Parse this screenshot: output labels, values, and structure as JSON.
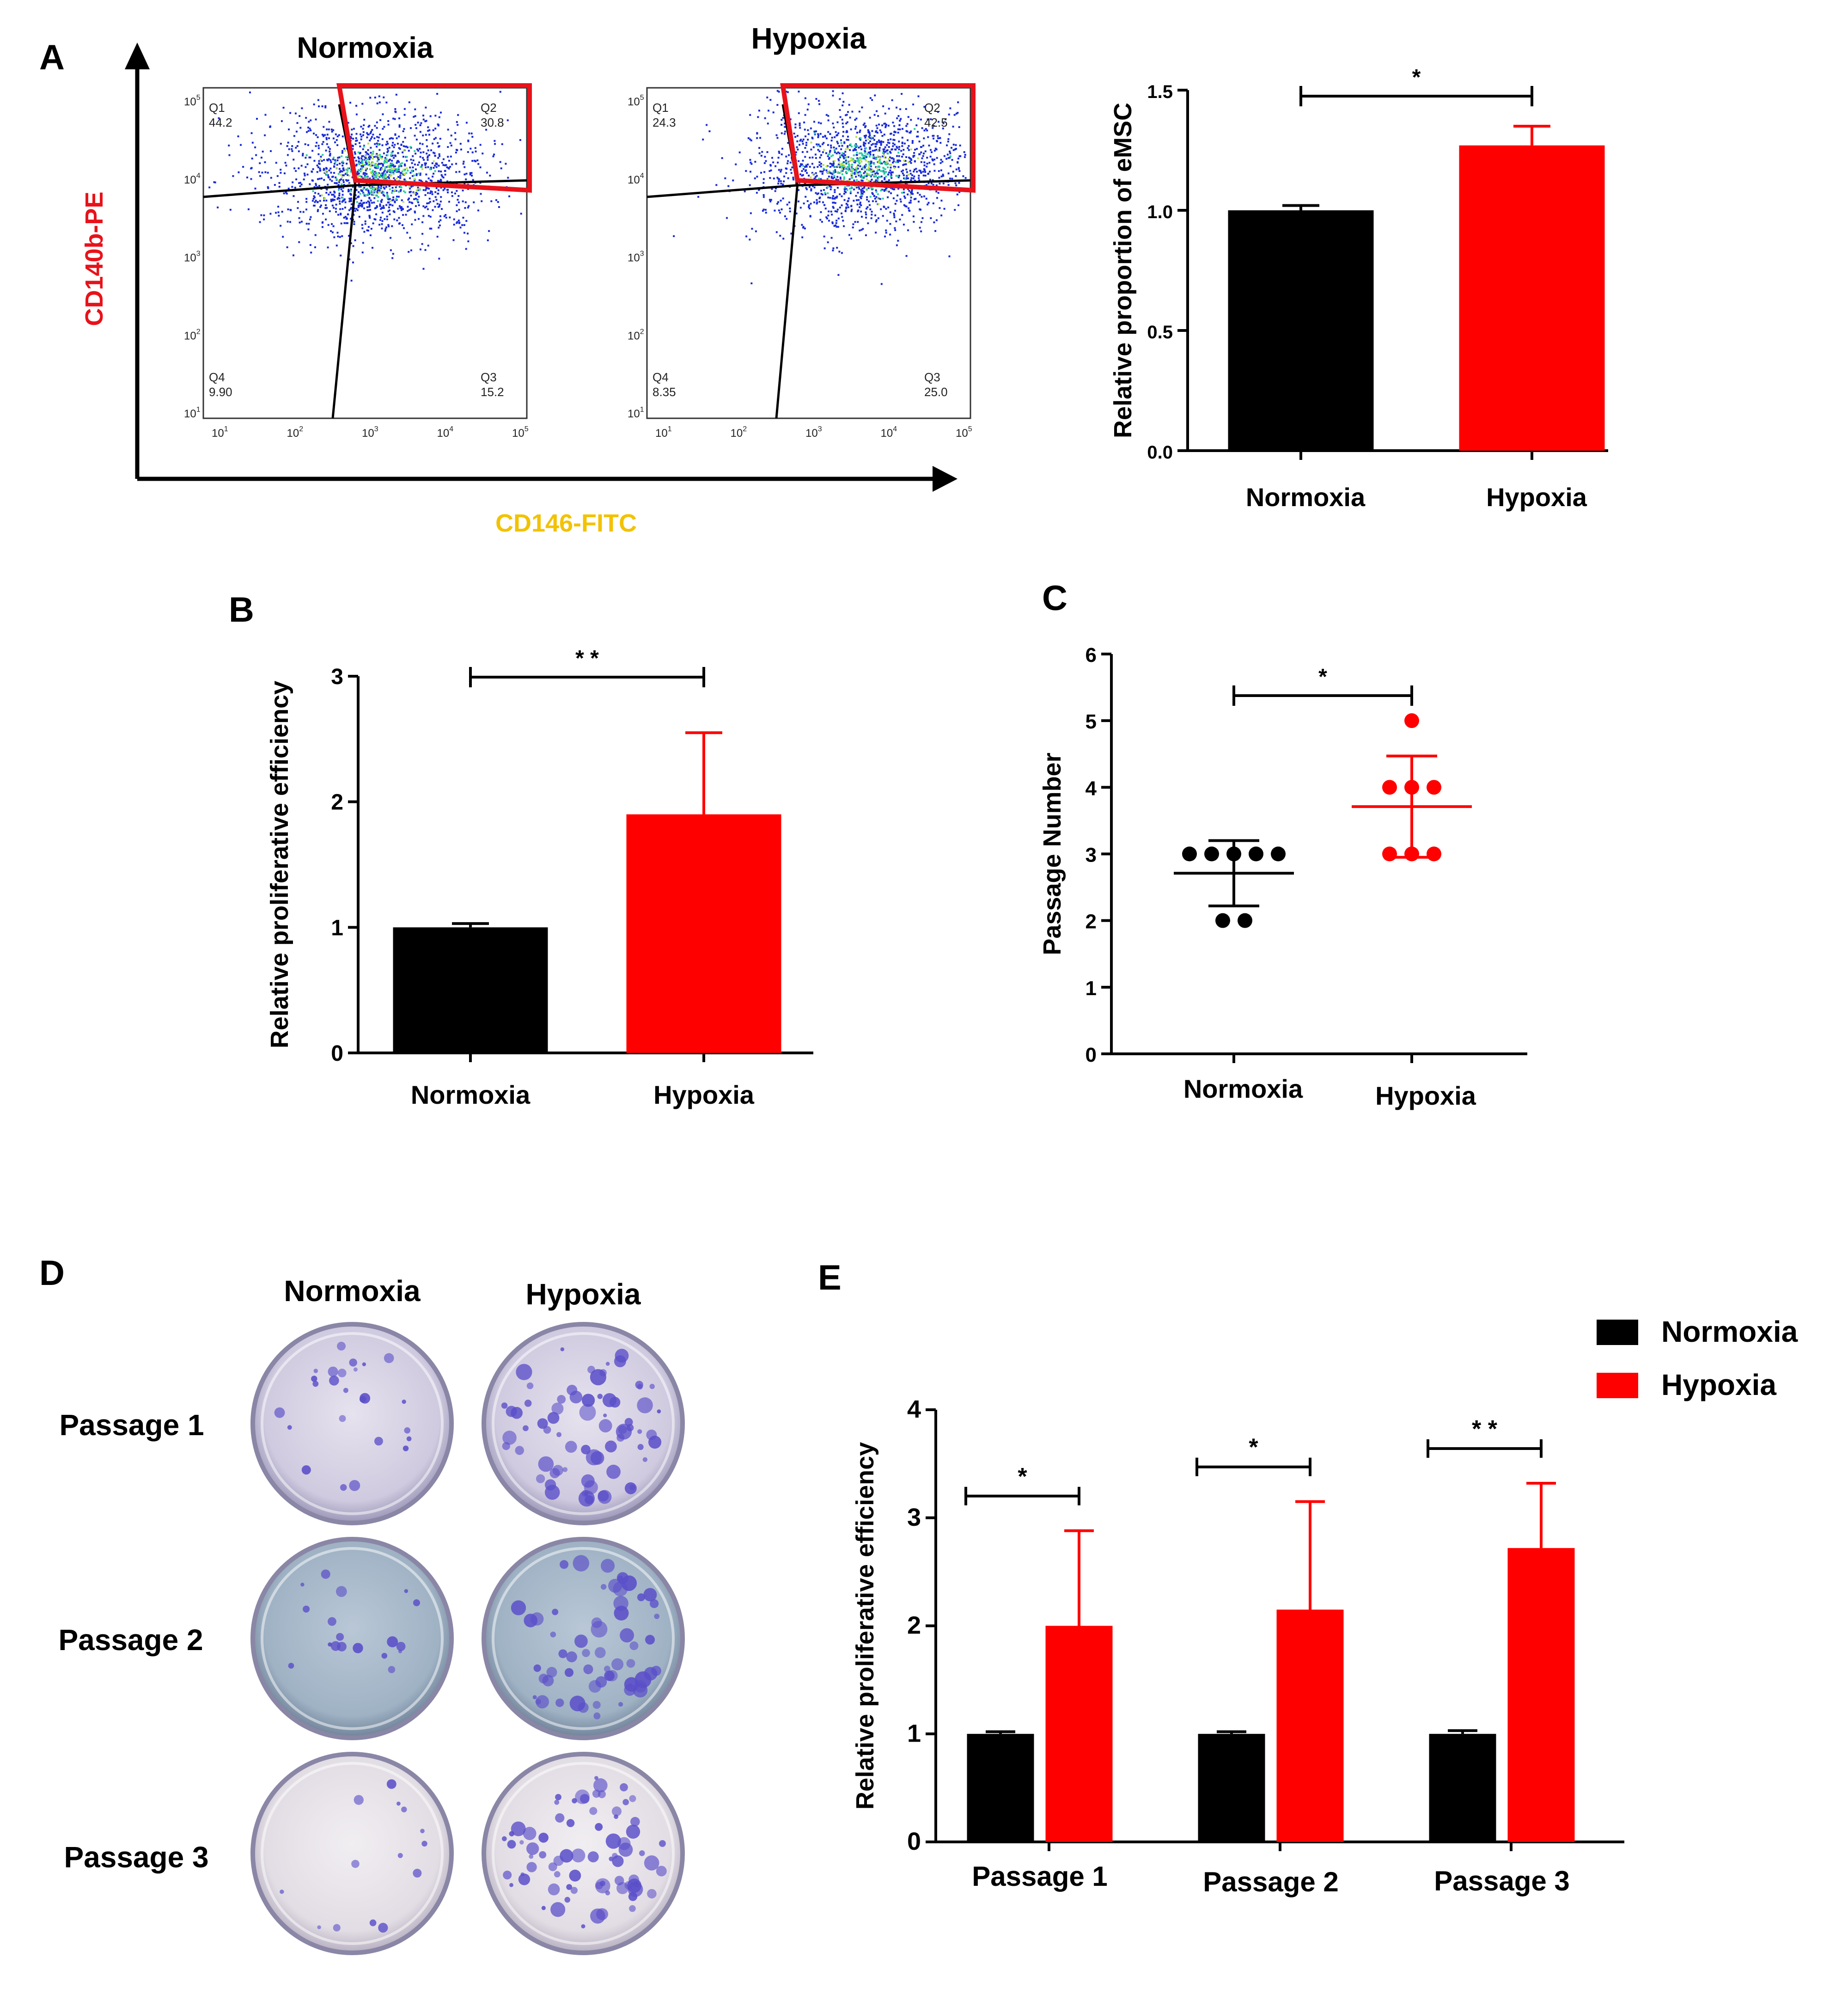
{
  "panel_labels": {
    "a": "A",
    "b": "B",
    "c": "C",
    "d": "D",
    "e": "E"
  },
  "flow": {
    "y_axis_label": "CD140b-PE",
    "x_axis_label": "CD146-FITC",
    "colors": {
      "ylabel": "#e8121a",
      "xlabel": "#f2c200",
      "gate": "#e8121a",
      "dots": "#1a2bd8",
      "core": "#29d0a0"
    },
    "tick_exponents": [
      "1",
      "2",
      "3",
      "4",
      "5"
    ],
    "plots": [
      {
        "title": "Normoxia",
        "quadrants": [
          {
            "name": "Q1",
            "value": "44.2"
          },
          {
            "name": "Q2",
            "value": "30.8"
          },
          {
            "name": "Q3",
            "value": "15.2"
          },
          {
            "name": "Q4",
            "value": "9.90"
          }
        ]
      },
      {
        "title": "Hypoxia",
        "quadrants": [
          {
            "name": "Q1",
            "value": "24.3"
          },
          {
            "name": "Q2",
            "value": "42.5"
          },
          {
            "name": "Q3",
            "value": "25.0"
          },
          {
            "name": "Q4",
            "value": "8.35"
          }
        ]
      }
    ]
  },
  "dishes": {
    "columns": [
      "Normoxia",
      "Hypoxia"
    ],
    "rows": [
      "Passage 1",
      "Passage 2",
      "Passage 3"
    ]
  },
  "chart_data": [
    {
      "panel": "A",
      "type": "bar",
      "categories": [
        "Normoxia",
        "Hypoxia"
      ],
      "values": [
        1.0,
        1.27
      ],
      "errors": [
        0.02,
        0.08
      ],
      "colors": [
        "#000000",
        "#ff0000"
      ],
      "ylabel": "Relative proportion of eMSC",
      "ylim": [
        0,
        1.5
      ],
      "yticks": [
        "0.0",
        "0.5",
        "1.0",
        "1.5"
      ],
      "significance": [
        {
          "from": 0,
          "to": 1,
          "label": "*"
        }
      ]
    },
    {
      "panel": "B",
      "type": "bar",
      "categories": [
        "Normoxia",
        "Hypoxia"
      ],
      "values": [
        1.0,
        1.9
      ],
      "errors": [
        0.03,
        0.65
      ],
      "colors": [
        "#000000",
        "#ff0000"
      ],
      "ylabel": "Relative proliferative efficiency",
      "ylim": [
        0,
        3
      ],
      "yticks": [
        "0",
        "1",
        "2",
        "3"
      ],
      "significance": [
        {
          "from": 0,
          "to": 1,
          "label": "* *"
        }
      ]
    },
    {
      "panel": "C",
      "type": "scatter",
      "categories": [
        "Normoxia",
        "Hypoxia"
      ],
      "series": [
        {
          "group": "Normoxia",
          "points": [
            3,
            3,
            3,
            3,
            3,
            2,
            2
          ],
          "mean": 2.71,
          "sd": 0.49,
          "color": "#000000"
        },
        {
          "group": "Hypoxia",
          "points": [
            5,
            4,
            4,
            4,
            3,
            3,
            3
          ],
          "mean": 3.71,
          "sd": 0.76,
          "color": "#ff0000"
        }
      ],
      "ylabel": "Passage Number",
      "ylim": [
        0,
        6
      ],
      "yticks": [
        "0",
        "1",
        "2",
        "3",
        "4",
        "5",
        "6"
      ],
      "significance": [
        {
          "from": 0,
          "to": 1,
          "label": "*"
        }
      ]
    },
    {
      "panel": "E",
      "type": "bar",
      "categories": [
        "Passage 1",
        "Passage 2",
        "Passage 3"
      ],
      "series": [
        {
          "name": "Normoxia",
          "values": [
            1.0,
            1.0,
            1.0
          ],
          "errors": [
            0.02,
            0.02,
            0.03
          ],
          "color": "#000000"
        },
        {
          "name": "Hypoxia",
          "values": [
            2.0,
            2.15,
            2.72
          ],
          "errors": [
            0.88,
            1.0,
            0.6
          ],
          "color": "#ff0000"
        }
      ],
      "ylabel": "Relative proliferative efficiency",
      "ylim": [
        0,
        4
      ],
      "yticks": [
        "0",
        "1",
        "2",
        "3",
        "4"
      ],
      "legend": "top-right",
      "significance": [
        {
          "category": 0,
          "label": "*"
        },
        {
          "category": 1,
          "label": "*"
        },
        {
          "category": 2,
          "label": "* *"
        }
      ]
    }
  ]
}
